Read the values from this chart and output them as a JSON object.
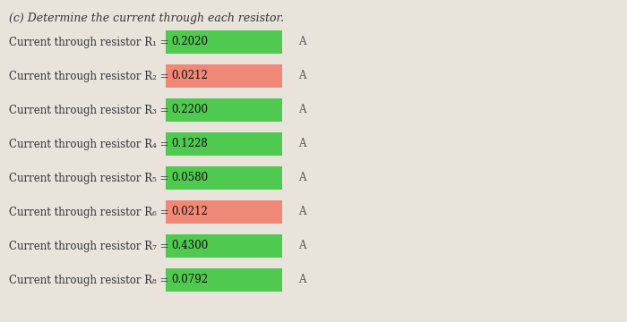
{
  "title": "(c) Determine the current through each resistor.",
  "background_color": "#e8e4dc",
  "rows": [
    {
      "label": "Current through resistor R₁ = ",
      "value": "0.2020",
      "unit": "A",
      "box_color": "#4fc94f"
    },
    {
      "label": "Current through resistor R₂ = ",
      "value": "0.0212",
      "unit": "A",
      "box_color": "#f08878"
    },
    {
      "label": "Current through resistor R₃ = ",
      "value": "0.2200",
      "unit": "A",
      "box_color": "#4fc94f"
    },
    {
      "label": "Current through resistor R₄ = ",
      "value": "0.1228",
      "unit": "A",
      "box_color": "#4fc94f"
    },
    {
      "label": "Current through resistor R₅ = ",
      "value": "0.0580",
      "unit": "A",
      "box_color": "#4fc94f"
    },
    {
      "label": "Current through resistor R₆ = ",
      "value": "0.0212",
      "unit": "A",
      "box_color": "#f08878"
    },
    {
      "label": "Current through resistor R₇ = ",
      "value": "0.4300",
      "unit": "A",
      "box_color": "#4fc94f"
    },
    {
      "label": "Current through resistor R₈ = ",
      "value": "0.0792",
      "unit": "A",
      "box_color": "#4fc94f"
    }
  ],
  "label_fontsize": 8.5,
  "value_fontsize": 8.5,
  "title_fontsize": 9,
  "fig_width": 7.0,
  "fig_height": 3.6,
  "dpi": 100
}
